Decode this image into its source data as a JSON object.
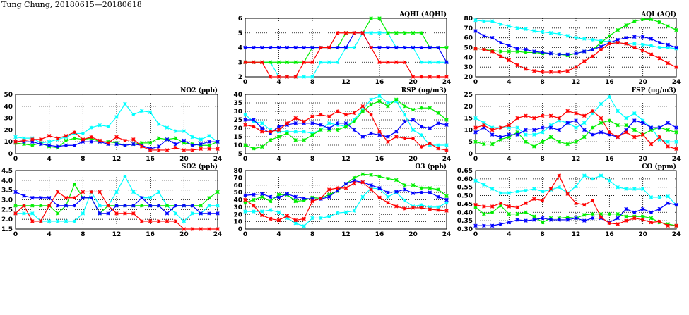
{
  "title": "Tung Chung, 20180615—20180618",
  "chart_data": [
    {
      "type": "line",
      "title": "AQHI (AQHI)",
      "xlim": [
        0,
        24
      ],
      "x_ticks": [
        "0",
        "4",
        "8",
        "12",
        "16",
        "20",
        "24"
      ],
      "ylim": [
        2,
        6
      ],
      "y_ticks": [
        "2",
        "3",
        "4",
        "5",
        "6"
      ],
      "grid": true,
      "series": [
        {
          "color": "#00ffff",
          "values": [
            3,
            3,
            3,
            3,
            2,
            2,
            2,
            2,
            2,
            3,
            3,
            3,
            4,
            4,
            5,
            5,
            5,
            5,
            4,
            4,
            4,
            3,
            3,
            3,
            3
          ]
        },
        {
          "color": "#00ee00",
          "values": [
            3,
            3,
            3,
            3,
            3,
            3,
            3,
            3,
            4,
            4,
            4,
            4,
            5,
            5,
            5,
            6,
            6,
            5,
            5,
            5,
            5,
            5,
            4,
            4,
            4
          ]
        },
        {
          "color": "#0000ff",
          "values": [
            4,
            4,
            4,
            4,
            4,
            4,
            4,
            4,
            4,
            4,
            4,
            4,
            4,
            5,
            5,
            4,
            4,
            4,
            4,
            4,
            4,
            4,
            4,
            4,
            3
          ]
        },
        {
          "color": "#ff0000",
          "values": [
            3,
            3,
            3,
            2,
            2,
            2,
            2,
            3,
            3,
            4,
            4,
            5,
            5,
            5,
            5,
            4,
            3,
            3,
            3,
            3,
            2,
            2,
            2,
            2,
            2
          ]
        }
      ]
    },
    {
      "type": "line",
      "title": "AQI (AQI)",
      "xlim": [
        0,
        24
      ],
      "x_ticks": [
        "0",
        "4",
        "8",
        "12",
        "16",
        "20",
        "24"
      ],
      "ylim": [
        20,
        80
      ],
      "y_ticks": [
        "20",
        "30",
        "40",
        "50",
        "60",
        "70",
        "80"
      ],
      "grid": true,
      "series": [
        {
          "color": "#00ffff",
          "values": [
            78,
            77,
            77,
            74,
            72,
            70,
            69,
            67,
            66,
            65,
            64,
            62,
            60,
            59,
            58,
            57,
            56,
            55,
            54,
            54,
            53,
            52,
            50,
            50,
            49
          ]
        },
        {
          "color": "#00ee00",
          "values": [
            49,
            48,
            47,
            46,
            46,
            46,
            45,
            45,
            44,
            44,
            43,
            42,
            44,
            46,
            48,
            55,
            62,
            68,
            73,
            77,
            79,
            79,
            76,
            72,
            68
          ]
        },
        {
          "color": "#0000ff",
          "values": [
            67,
            62,
            60,
            55,
            52,
            49,
            48,
            46,
            45,
            44,
            43,
            43,
            44,
            46,
            48,
            51,
            55,
            58,
            60,
            61,
            61,
            59,
            55,
            53,
            50
          ]
        },
        {
          "color": "#ff0000",
          "values": [
            49,
            48,
            46,
            41,
            37,
            32,
            28,
            26,
            25,
            25,
            25,
            26,
            30,
            36,
            41,
            48,
            54,
            55,
            54,
            50,
            47,
            43,
            39,
            34,
            30
          ]
        }
      ]
    },
    {
      "type": "line",
      "title": "NO2 (ppb)",
      "xlim": [
        0,
        24
      ],
      "x_ticks": [
        "0",
        "4",
        "8",
        "12",
        "16",
        "20",
        "24"
      ],
      "ylim": [
        0,
        50
      ],
      "y_ticks": [
        "0",
        "10",
        "20",
        "30",
        "40",
        "50"
      ],
      "grid": true,
      "series": [
        {
          "color": "#00ffff",
          "values": [
            14,
            13,
            13,
            9,
            10,
            12,
            14,
            17,
            17,
            22,
            24,
            23,
            31,
            42,
            33,
            36,
            35,
            25,
            22,
            19,
            19,
            14,
            12,
            15,
            10
          ]
        },
        {
          "color": "#00ee00",
          "values": [
            9,
            8,
            7,
            9,
            6,
            5,
            11,
            13,
            12,
            13,
            10,
            10,
            9,
            7,
            8,
            9,
            9,
            13,
            12,
            13,
            9,
            8,
            7,
            7,
            10
          ]
        },
        {
          "color": "#0000ff",
          "values": [
            10,
            10,
            10,
            8,
            7,
            6,
            7,
            7,
            10,
            10,
            10,
            8,
            8,
            7,
            8,
            7,
            4,
            6,
            12,
            8,
            11,
            7,
            8,
            10,
            10
          ]
        },
        {
          "color": "#ff0000",
          "values": [
            10,
            11,
            12,
            12,
            15,
            13,
            15,
            18,
            12,
            14,
            11,
            9,
            14,
            11,
            12,
            6,
            3,
            3,
            3,
            5,
            3,
            3,
            4,
            4,
            4
          ]
        }
      ]
    },
    {
      "type": "line",
      "title": "RSP (ug/m3)",
      "xlim": [
        0,
        24
      ],
      "x_ticks": [
        "0",
        "4",
        "8",
        "12",
        "16",
        "20",
        "24"
      ],
      "ylim": [
        5,
        40
      ],
      "y_ticks": [
        "5",
        "10",
        "15",
        "20",
        "25",
        "30",
        "35",
        "40"
      ],
      "grid": true,
      "series": [
        {
          "color": "#00ffff",
          "values": [
            28,
            24,
            23,
            19,
            18,
            18,
            18,
            18,
            17,
            19,
            23,
            22,
            21,
            25,
            31,
            37,
            39,
            35,
            36,
            28,
            19,
            16,
            10,
            10,
            10
          ]
        },
        {
          "color": "#00ee00",
          "values": [
            10,
            8,
            9,
            13,
            15,
            17,
            13,
            13,
            16,
            19,
            19,
            19,
            21,
            24,
            30,
            34,
            36,
            33,
            37,
            33,
            31,
            32,
            32,
            29,
            25
          ]
        },
        {
          "color": "#0000ff",
          "values": [
            25,
            25,
            20,
            17,
            21,
            22,
            23,
            23,
            23,
            22,
            20,
            23,
            23,
            19,
            15,
            17,
            16,
            15,
            18,
            24,
            25,
            21,
            20,
            23,
            22
          ]
        },
        {
          "color": "#ff0000",
          "values": [
            22,
            21,
            18,
            18,
            19,
            23,
            26,
            24,
            27,
            28,
            27,
            30,
            28,
            29,
            33,
            28,
            18,
            12,
            15,
            14,
            14,
            9,
            11,
            8,
            7
          ]
        }
      ]
    },
    {
      "type": "line",
      "title": "FSP (ug/m3)",
      "xlim": [
        0,
        24
      ],
      "x_ticks": [
        "0",
        "4",
        "8",
        "12",
        "16",
        "20",
        "24"
      ],
      "ylim": [
        0,
        25
      ],
      "y_ticks": [
        "0",
        "5",
        "10",
        "15",
        "20",
        "25"
      ],
      "grid": true,
      "series": [
        {
          "color": "#00ffff",
          "values": [
            15,
            13,
            11,
            11,
            11,
            11,
            8,
            8,
            9,
            12,
            14,
            13,
            11,
            13,
            17,
            21,
            24,
            18,
            15,
            17,
            14,
            11,
            6,
            5,
            5
          ]
        },
        {
          "color": "#00ee00",
          "values": [
            5,
            4,
            4,
            6,
            7,
            9,
            5,
            3,
            5,
            7,
            5,
            4,
            5,
            7,
            11,
            13,
            14,
            12,
            12,
            10,
            8,
            10,
            11,
            10,
            9
          ]
        },
        {
          "color": "#0000ff",
          "values": [
            9,
            11,
            8,
            7,
            8,
            8,
            10,
            10,
            11,
            11,
            10,
            13,
            14,
            10,
            8,
            9,
            8,
            7,
            10,
            14,
            13,
            11,
            11,
            13,
            11
          ]
        },
        {
          "color": "#ff0000",
          "values": [
            11,
            12,
            10,
            11,
            12,
            15,
            16,
            15,
            16,
            16,
            15,
            18,
            17,
            16,
            18,
            15,
            9,
            7,
            9,
            7,
            8,
            4,
            7,
            3,
            2
          ]
        }
      ]
    },
    {
      "type": "line",
      "title": "SO2 (ppb)",
      "xlim": [
        0,
        24
      ],
      "x_ticks": [
        "0",
        "4",
        "8",
        "12",
        "16",
        "20",
        "24"
      ],
      "ylim": [
        1.5,
        4.5
      ],
      "y_ticks": [
        "1.5",
        "2.0",
        "2.5",
        "3.0",
        "3.5",
        "4.0",
        "4.5"
      ],
      "grid": true,
      "series": [
        {
          "color": "#00ffff",
          "values": [
            2.3,
            2.3,
            2.3,
            1.9,
            1.9,
            1.9,
            1.9,
            1.9,
            2.3,
            3.4,
            2.7,
            2.7,
            3.4,
            4.2,
            3.4,
            3.1,
            3.1,
            3.4,
            2.7,
            2.3,
            1.9,
            2.3,
            2.3,
            2.7,
            2.7
          ]
        },
        {
          "color": "#00ee00",
          "values": [
            2.7,
            2.7,
            2.7,
            2.7,
            2.7,
            2.3,
            2.7,
            3.8,
            3.1,
            3.1,
            2.3,
            2.7,
            2.7,
            2.7,
            2.7,
            2.7,
            2.7,
            2.7,
            2.7,
            2.7,
            2.7,
            2.7,
            2.7,
            3.1,
            3.4
          ]
        },
        {
          "color": "#0000ff",
          "values": [
            3.4,
            3.2,
            3.1,
            3.1,
            3.1,
            2.7,
            2.7,
            2.7,
            3.1,
            3.1,
            2.3,
            2.3,
            2.7,
            2.7,
            2.7,
            3.1,
            2.7,
            2.7,
            2.3,
            2.7,
            2.7,
            2.7,
            2.3,
            2.3,
            2.3
          ]
        },
        {
          "color": "#ff0000",
          "values": [
            2.3,
            2.7,
            1.9,
            1.9,
            2.7,
            3.4,
            3.1,
            3.1,
            3.4,
            3.4,
            3.4,
            2.7,
            2.3,
            2.3,
            2.3,
            1.9,
            1.9,
            1.9,
            1.9,
            1.9,
            1.5,
            1.5,
            1.5,
            1.5,
            1.5
          ]
        }
      ]
    },
    {
      "type": "line",
      "title": "O3 (ppb)",
      "xlim": [
        0,
        24
      ],
      "x_ticks": [
        "0",
        "4",
        "8",
        "12",
        "16",
        "20",
        "24"
      ],
      "ylim": [
        0,
        80
      ],
      "y_ticks": [
        "0",
        "10",
        "20",
        "30",
        "40",
        "50",
        "60",
        "70",
        "80"
      ],
      "grid": true,
      "series": [
        {
          "color": "#00ffff",
          "values": [
            24,
            24,
            24,
            26,
            23,
            15,
            8,
            4,
            15,
            15,
            17,
            22,
            23,
            25,
            44,
            56,
            55,
            44,
            50,
            39,
            31,
            33,
            30,
            30,
            36
          ]
        },
        {
          "color": "#00ee00",
          "values": [
            36,
            40,
            44,
            38,
            47,
            47,
            38,
            39,
            43,
            42,
            47,
            52,
            62,
            70,
            75,
            74,
            72,
            69,
            67,
            60,
            60,
            56,
            56,
            54,
            45
          ]
        },
        {
          "color": "#0000ff",
          "values": [
            46,
            47,
            48,
            44,
            43,
            48,
            44,
            42,
            41,
            41,
            44,
            53,
            62,
            66,
            64,
            60,
            56,
            50,
            51,
            54,
            49,
            50,
            50,
            44,
            40
          ]
        },
        {
          "color": "#ff0000",
          "values": [
            40,
            32,
            19,
            14,
            12,
            18,
            12,
            14,
            38,
            42,
            54,
            56,
            56,
            63,
            64,
            54,
            43,
            36,
            31,
            28,
            29,
            29,
            27,
            26,
            25
          ]
        }
      ]
    },
    {
      "type": "line",
      "title": "CO (ppm)",
      "xlim": [
        0,
        24
      ],
      "x_ticks": [
        "0",
        "4",
        "8",
        "12",
        "16",
        "20",
        "24"
      ],
      "ylim": [
        0.3,
        0.65
      ],
      "y_ticks": [
        "0.30",
        "0.35",
        "0.40",
        "0.45",
        "0.50",
        "0.55",
        "0.60",
        "0.65"
      ],
      "grid": true,
      "series": [
        {
          "color": "#00ffff",
          "values": [
            0.59,
            0.565,
            0.54,
            0.515,
            0.515,
            0.525,
            0.53,
            0.54,
            0.525,
            0.535,
            0.55,
            0.515,
            0.555,
            0.62,
            0.6,
            0.62,
            0.59,
            0.55,
            0.54,
            0.54,
            0.54,
            0.49,
            0.49,
            0.495,
            0.445
          ]
        },
        {
          "color": "#00ee00",
          "values": [
            0.43,
            0.39,
            0.4,
            0.44,
            0.39,
            0.39,
            0.4,
            0.375,
            0.34,
            0.365,
            0.365,
            0.37,
            0.365,
            0.385,
            0.39,
            0.39,
            0.39,
            0.39,
            0.375,
            0.375,
            0.375,
            0.365,
            0.34,
            0.33,
            0.32
          ]
        },
        {
          "color": "#0000ff",
          "values": [
            0.32,
            0.32,
            0.32,
            0.33,
            0.34,
            0.355,
            0.35,
            0.355,
            0.365,
            0.355,
            0.355,
            0.355,
            0.365,
            0.35,
            0.365,
            0.365,
            0.34,
            0.365,
            0.42,
            0.4,
            0.42,
            0.4,
            0.42,
            0.455,
            0.445
          ]
        },
        {
          "color": "#ff0000",
          "values": [
            0.445,
            0.435,
            0.435,
            0.455,
            0.435,
            0.43,
            0.455,
            0.48,
            0.47,
            0.54,
            0.62,
            0.51,
            0.455,
            0.445,
            0.47,
            0.37,
            0.335,
            0.33,
            0.35,
            0.365,
            0.355,
            0.34,
            0.345,
            0.32,
            0.32
          ]
        }
      ]
    }
  ]
}
